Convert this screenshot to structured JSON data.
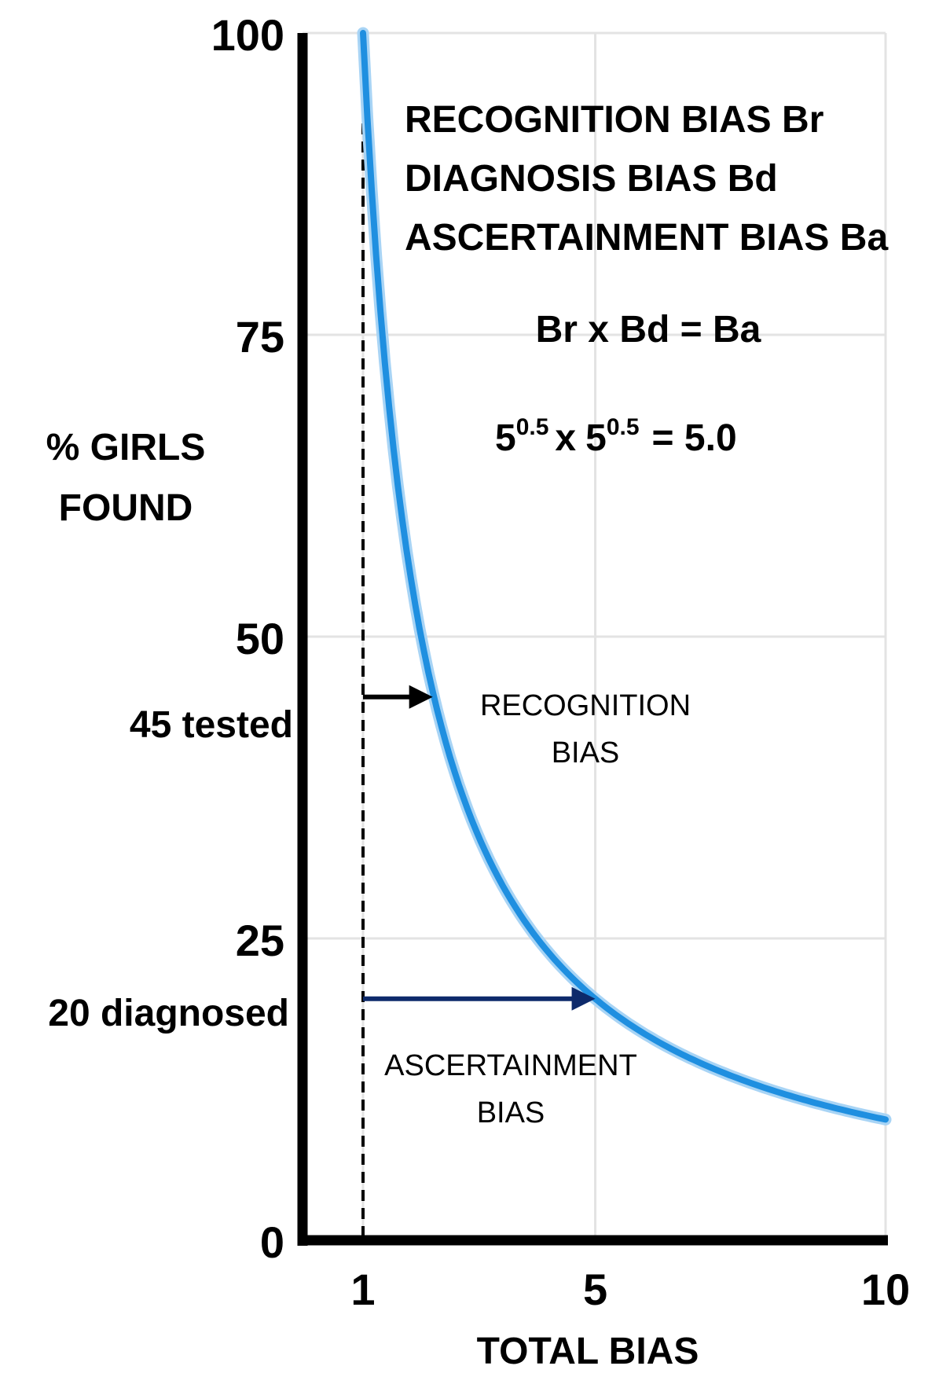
{
  "chart_data": {
    "type": "line",
    "title": "",
    "ylabel_lines": [
      "% GIRLS",
      "FOUND"
    ],
    "xlabel": "TOTAL BIAS",
    "xlim": [
      0,
      10
    ],
    "ylim": [
      0,
      100
    ],
    "x_ticks": [
      {
        "value": 1,
        "label": "1"
      },
      {
        "value": 5,
        "label": "5"
      },
      {
        "value": 10,
        "label": "10"
      }
    ],
    "y_ticks": [
      {
        "value": 0,
        "label": "0"
      },
      {
        "value": 25,
        "label": "25"
      },
      {
        "value": 50,
        "label": "50"
      },
      {
        "value": 75,
        "label": "75"
      },
      {
        "value": 100,
        "label": "100"
      }
    ],
    "grid_x": [
      1,
      5,
      10
    ],
    "grid_y": [
      25,
      50,
      75,
      100
    ],
    "series": [
      {
        "name": "% girls found vs total bias",
        "color": "#1f8fe0",
        "x": [
          1.0,
          1.1,
          1.25,
          1.5,
          1.75,
          2.0,
          2.25,
          2.5,
          3.0,
          3.5,
          4.0,
          4.5,
          5.0,
          5.5,
          6.0,
          7.0,
          8.0,
          9.0,
          10.0
        ],
        "y": [
          100,
          90.9,
          80,
          66.7,
          57.1,
          50,
          44.4,
          40,
          33.3,
          28.6,
          25,
          22.2,
          20,
          18.2,
          16.7,
          14.3,
          12.5,
          11.1,
          10
        ]
      }
    ],
    "reference_line": {
      "x": 1,
      "style": "dashed",
      "color": "#000000"
    },
    "left_labels": [
      {
        "y": 45,
        "text": "45 tested"
      },
      {
        "y": 20,
        "text": "20 diagnosed"
      }
    ],
    "arrows": [
      {
        "name": "recognition-bias-arrow",
        "y": 45,
        "x_from": 1,
        "x_to": 2.2,
        "color": "#000000",
        "label_lines": [
          "RECOGNITION",
          "BIAS"
        ]
      },
      {
        "name": "ascertainment-bias-arrow",
        "y": 20,
        "x_from": 1,
        "x_to": 5,
        "color": "#0d2a6b",
        "label_lines": [
          "ASCERTAINMENT",
          "BIAS"
        ]
      }
    ],
    "legend_lines": [
      "RECOGNITION BIAS Br",
      "DIAGNOSIS BIAS Bd",
      "ASCERTAINMENT BIAS Ba"
    ],
    "formula": "Br x Bd = Ba",
    "equation": {
      "base": "5",
      "exponent": "0.5",
      "operator": "x",
      "result": "= 5.0"
    }
  }
}
